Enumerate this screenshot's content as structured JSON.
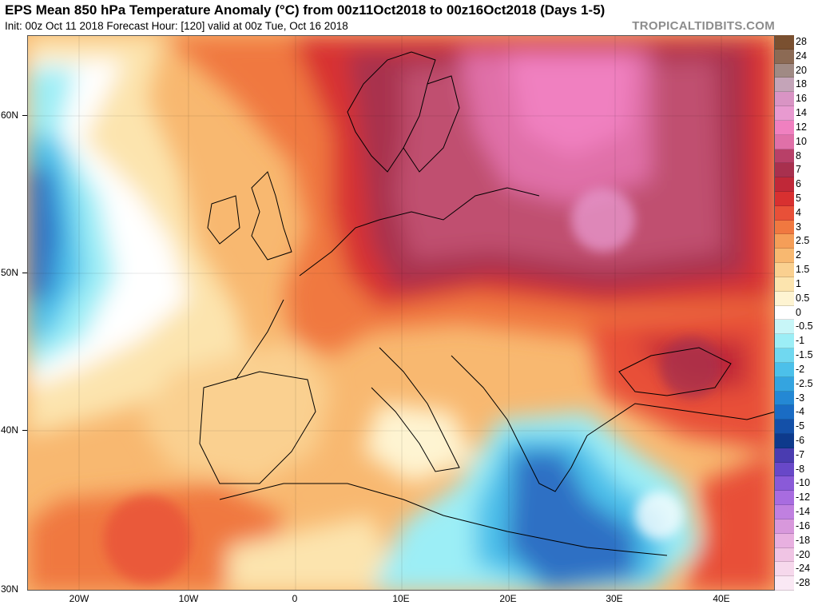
{
  "header": {
    "title": "EPS Mean 850 hPa Temperature Anomaly (°C) from 00z11Oct2018 to 00z16Oct2018 (Days 1-5)",
    "subtitle": "Init: 00z Oct 11 2018   Forecast Hour: [120]   valid at 00z Tue, Oct 16 2018",
    "credit": "TROPICALTIDBITS.COM"
  },
  "axes": {
    "lat_labels": [
      "60N",
      "50N",
      "40N",
      "30N"
    ],
    "lon_labels": [
      "20W",
      "10W",
      "0",
      "10E",
      "20E",
      "30E",
      "40E"
    ]
  },
  "colorbar": {
    "levels": [
      {
        "label": "28",
        "color": "#7a5030"
      },
      {
        "label": "24",
        "color": "#8c6a54"
      },
      {
        "label": "20",
        "color": "#a08a84"
      },
      {
        "label": "18",
        "color": "#c4a4b8"
      },
      {
        "label": "16",
        "color": "#d994c4"
      },
      {
        "label": "14",
        "color": "#e89ad0"
      },
      {
        "label": "12",
        "color": "#f080c0"
      },
      {
        "label": "10",
        "color": "#e070a8"
      },
      {
        "label": "8",
        "color": "#b84068"
      },
      {
        "label": "7",
        "color": "#a8304e"
      },
      {
        "label": "6",
        "color": "#c02838"
      },
      {
        "label": "5",
        "color": "#d83030"
      },
      {
        "label": "4",
        "color": "#e85038"
      },
      {
        "label": "3",
        "color": "#f07840"
      },
      {
        "label": "2.5",
        "color": "#f59e58"
      },
      {
        "label": "2",
        "color": "#f8b870"
      },
      {
        "label": "1.5",
        "color": "#fad090"
      },
      {
        "label": "1",
        "color": "#fce4ae"
      },
      {
        "label": "0.5",
        "color": "#fef4d2"
      },
      {
        "label": "0",
        "color": "#ffffff"
      },
      {
        "label": "-0.5",
        "color": "#c8f6f8"
      },
      {
        "label": "-1",
        "color": "#9ceef6"
      },
      {
        "label": "-1.5",
        "color": "#70d8f0"
      },
      {
        "label": "-2",
        "color": "#4cc0ea"
      },
      {
        "label": "-2.5",
        "color": "#34a4e0"
      },
      {
        "label": "-3",
        "color": "#2488d4"
      },
      {
        "label": "-4",
        "color": "#1a6cc4"
      },
      {
        "label": "-5",
        "color": "#1450a8"
      },
      {
        "label": "-6",
        "color": "#0e3a8c"
      },
      {
        "label": "-7",
        "color": "#4a3cb0"
      },
      {
        "label": "-8",
        "color": "#6848c8"
      },
      {
        "label": "-10",
        "color": "#8a5ad8"
      },
      {
        "label": "-12",
        "color": "#a86ce0"
      },
      {
        "label": "-14",
        "color": "#c080e0"
      },
      {
        "label": "-16",
        "color": "#d898dc"
      },
      {
        "label": "-18",
        "color": "#e8b0e0"
      },
      {
        "label": "-20",
        "color": "#f0c4e4"
      },
      {
        "label": "-24",
        "color": "#f6d8ec"
      },
      {
        "label": "-28",
        "color": "#fae8f4"
      }
    ]
  },
  "colors": {
    "ocean_cool_deep": "#2f6fc4",
    "ocean_cool": "#4cc0ea",
    "warm_strong": "#a8304e",
    "warm_moderate": "#e85038",
    "warm_light": "#f8b870",
    "coast": "#000000"
  }
}
